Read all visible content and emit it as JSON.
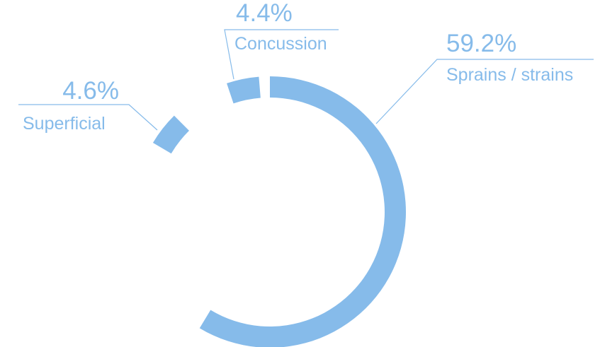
{
  "chart_data": {
    "type": "pie",
    "variant": "donut",
    "slices": [
      {
        "label": "Sprains / strains",
        "value": 59.2,
        "value_label": "59.2%"
      },
      {
        "label": "Superficial",
        "value": 4.6,
        "value_label": "4.6%"
      },
      {
        "label": "Concussion",
        "value": 4.4,
        "value_label": "4.4%"
      }
    ],
    "colors": {
      "slice": "#86bbea",
      "label": "#86bbea",
      "leader": "#86bbea"
    }
  }
}
